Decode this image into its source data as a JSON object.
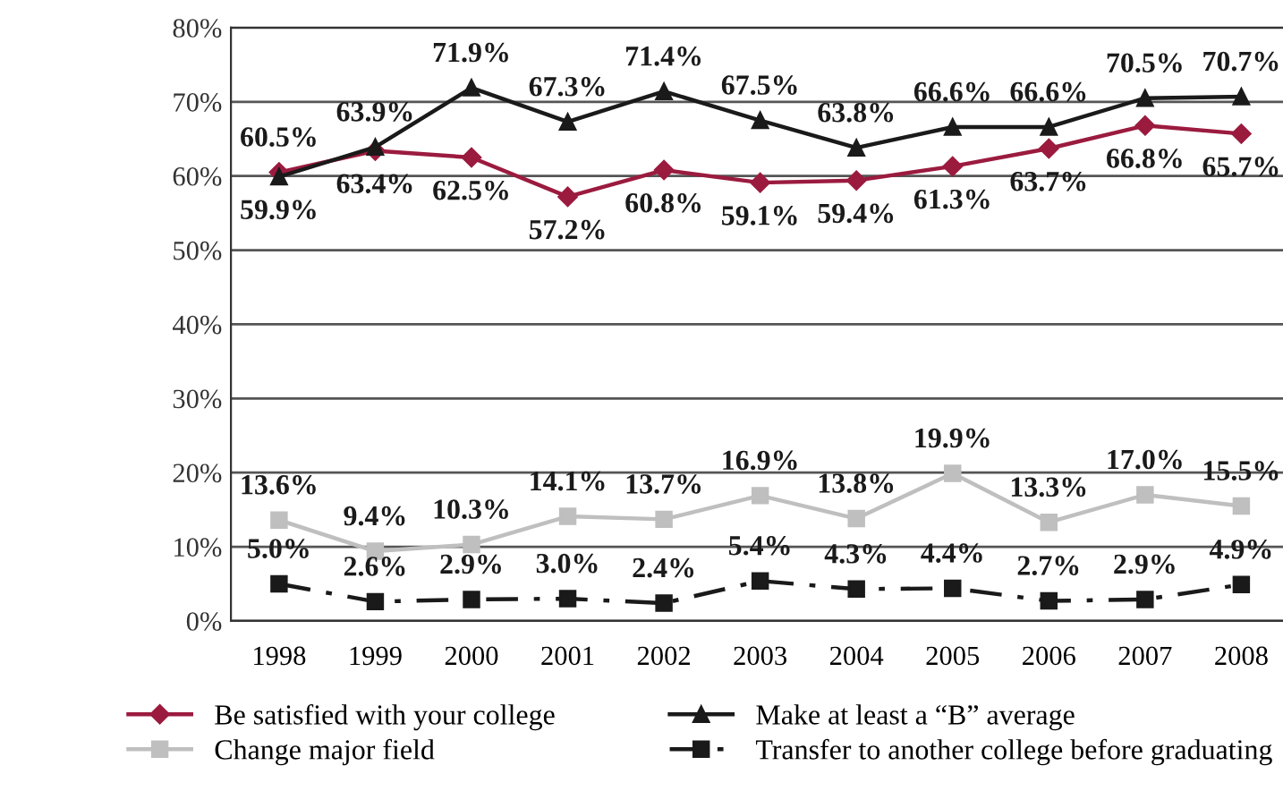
{
  "chart_data": {
    "type": "line",
    "categories": [
      "1998",
      "1999",
      "2000",
      "2001",
      "2002",
      "2003",
      "2004",
      "2005",
      "2006",
      "2007",
      "2008"
    ],
    "series": [
      {
        "name": "Be satisfied with your college",
        "color": "#9b1b3f",
        "marker": "diamond",
        "line_style": "solid",
        "values": [
          60.5,
          63.4,
          62.5,
          57.2,
          60.8,
          59.1,
          59.4,
          61.3,
          63.7,
          66.8,
          65.7
        ],
        "value_labels": [
          "60.5%",
          "63.4%",
          "62.5%",
          "57.2%",
          "60.8%",
          "59.1%",
          "59.4%",
          "61.3%",
          "63.7%",
          "66.8%",
          "65.7%"
        ]
      },
      {
        "name": "Change major field",
        "color": "#bfbfbf",
        "marker": "square",
        "line_style": "solid",
        "values": [
          13.6,
          9.4,
          10.3,
          14.1,
          13.7,
          16.9,
          13.8,
          19.9,
          13.3,
          17.0,
          15.5
        ],
        "value_labels": [
          "13.6%",
          "9.4%",
          "10.3%",
          "14.1%",
          "13.7%",
          "16.9%",
          "13.8%",
          "19.9%",
          "13.3%",
          "17.0%",
          "15.5%"
        ]
      },
      {
        "name": "Make at least a “B” average",
        "color": "#1a1a1a",
        "marker": "triangle",
        "line_style": "solid",
        "values": [
          59.9,
          63.9,
          71.9,
          67.3,
          71.4,
          67.5,
          63.8,
          66.6,
          66.6,
          70.5,
          70.7
        ],
        "value_labels": [
          "59.9%",
          "63.9%",
          "71.9%",
          "67.3%",
          "71.4%",
          "67.5%",
          "63.8%",
          "66.6%",
          "66.6%",
          "70.5%",
          "70.7%"
        ]
      },
      {
        "name": "Transfer to another college before graduating",
        "color": "#1a1a1a",
        "marker": "square",
        "line_style": "dashdot",
        "values": [
          5.0,
          2.6,
          2.9,
          3.0,
          2.4,
          5.4,
          4.3,
          4.4,
          2.7,
          2.9,
          4.9
        ],
        "value_labels": [
          "5.0%",
          "2.6%",
          "2.9%",
          "3.0%",
          "2.4%",
          "5.4%",
          "4.3%",
          "4.4%",
          "2.7%",
          "2.9%",
          "4.9%"
        ]
      }
    ],
    "ylim": [
      0,
      80
    ],
    "yticks": [
      {
        "value": 0,
        "label": "0%"
      },
      {
        "value": 10,
        "label": "10%"
      },
      {
        "value": 20,
        "label": "20%"
      },
      {
        "value": 30,
        "label": "30%"
      },
      {
        "value": 40,
        "label": "40%"
      },
      {
        "value": 50,
        "label": "50%"
      },
      {
        "value": 60,
        "label": "60%"
      },
      {
        "value": 70,
        "label": "70%"
      },
      {
        "value": 80,
        "label": "80%"
      }
    ],
    "grid": "y",
    "legend": "bottom"
  }
}
